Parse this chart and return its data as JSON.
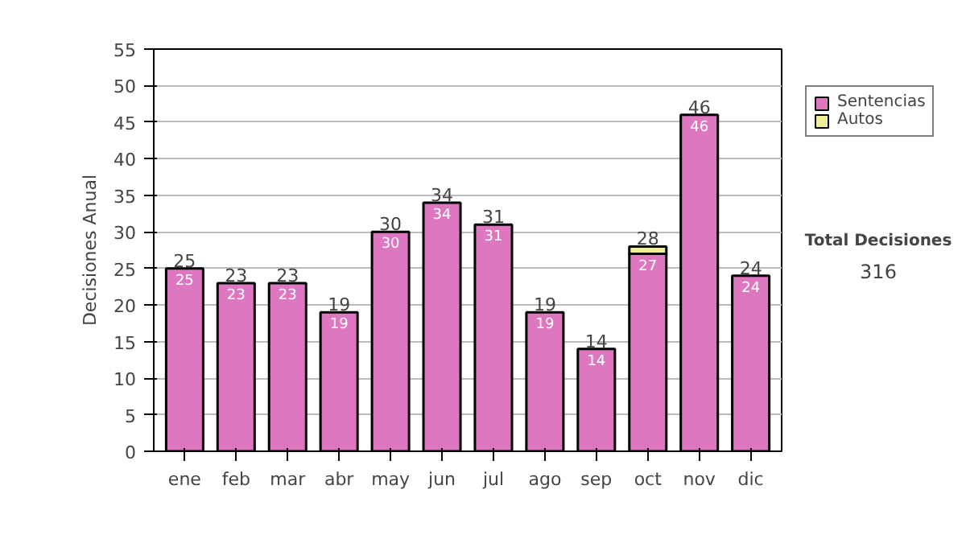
{
  "chart_data": {
    "type": "bar",
    "stacked": true,
    "ylabel": "Decisiones Anual",
    "categories": [
      "ene",
      "feb",
      "mar",
      "abr",
      "may",
      "jun",
      "jul",
      "ago",
      "sep",
      "oct",
      "nov",
      "dic"
    ],
    "series": [
      {
        "name": "Sentencias",
        "color": "#dd77c0",
        "values": [
          25,
          23,
          23,
          19,
          30,
          34,
          31,
          19,
          14,
          27,
          46,
          24
        ],
        "value_labels": [
          "25",
          "23",
          "23",
          "19",
          "30",
          "34",
          "31",
          "19",
          "14",
          "27",
          "46",
          "24"
        ]
      },
      {
        "name": "Autos",
        "color": "#eeee99",
        "values": [
          null,
          null,
          null,
          null,
          null,
          null,
          null,
          null,
          null,
          1,
          null,
          null
        ]
      }
    ],
    "totals": [
      "25",
      "23",
      "23",
      "19",
      "30",
      "34",
      "31",
      "19",
      "14",
      "28",
      "46",
      "24"
    ],
    "ylim": [
      0,
      55
    ],
    "yticks": [
      0,
      5,
      10,
      15,
      20,
      25,
      30,
      35,
      40,
      45,
      50,
      55
    ],
    "grid": "y",
    "legend": "right",
    "annotations": [
      "Total Decisiones",
      "316"
    ]
  }
}
